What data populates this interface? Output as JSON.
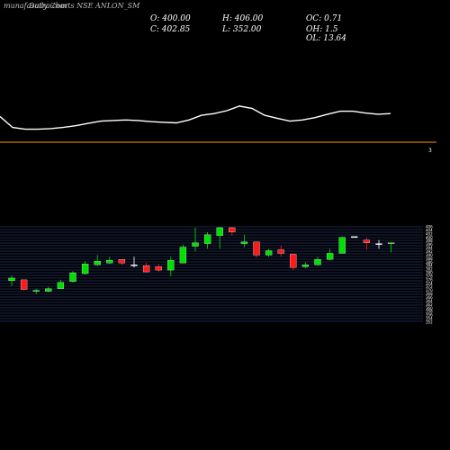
{
  "header": {
    "watermark": "munafasutra.com",
    "title": "Daily Charts NSE ANLON_SM",
    "open_label": "O: 400.00",
    "high_label": "H: 406.00",
    "close_label": "C: 402.85",
    "low_label": "L: 352.00",
    "oc_label": "OC: 0.71",
    "oh_label": "OH: 1.5",
    "ol_label": "OL: 13.64"
  },
  "colors": {
    "background": "#000000",
    "up_candle": "#00e000",
    "down_candle": "#ff1a1a",
    "neutral_candle": "#ffffff",
    "grid_line": "#3a4e9a",
    "panel_line": "#ffffff",
    "separator": "#ff9900"
  },
  "separator_marker": "3",
  "chart_data": {
    "type": "candlestick",
    "ylim": [
      352,
      406
    ],
    "series": [
      {
        "open": 375.5,
        "high": 378.5,
        "low": 372.5,
        "close": 377.0
      },
      {
        "open": 376.0,
        "high": 376.0,
        "low": 370.0,
        "close": 370.5
      },
      {
        "open": 369.5,
        "high": 371.0,
        "low": 368.0,
        "close": 370.0
      },
      {
        "open": 369.5,
        "high": 372.0,
        "low": 369.0,
        "close": 371.0
      },
      {
        "open": 371.0,
        "high": 376.0,
        "low": 371.0,
        "close": 374.5
      },
      {
        "open": 375.0,
        "high": 381.0,
        "low": 374.5,
        "close": 380.0
      },
      {
        "open": 379.5,
        "high": 386.5,
        "low": 379.0,
        "close": 385.0
      },
      {
        "open": 384.5,
        "high": 390.0,
        "low": 384.0,
        "close": 386.5
      },
      {
        "open": 385.5,
        "high": 389.0,
        "low": 385.0,
        "close": 387.0
      },
      {
        "open": 387.5,
        "high": 387.5,
        "low": 384.5,
        "close": 385.5
      },
      {
        "open": 384.5,
        "high": 389.0,
        "low": 383.0,
        "close": 384.5
      },
      {
        "open": 384.0,
        "high": 385.5,
        "low": 380.0,
        "close": 380.5
      },
      {
        "open": 383.5,
        "high": 385.0,
        "low": 380.5,
        "close": 381.5
      },
      {
        "open": 381.5,
        "high": 389.0,
        "low": 378.0,
        "close": 387.0
      },
      {
        "open": 385.5,
        "high": 396.0,
        "low": 385.5,
        "close": 394.5
      },
      {
        "open": 395.0,
        "high": 405.5,
        "low": 392.0,
        "close": 397.0
      },
      {
        "open": 396.5,
        "high": 403.0,
        "low": 393.5,
        "close": 401.5
      },
      {
        "open": 401.0,
        "high": 406.0,
        "low": 393.5,
        "close": 405.5
      },
      {
        "open": 405.5,
        "high": 406.0,
        "low": 401.0,
        "close": 403.0
      },
      {
        "open": 396.5,
        "high": 401.5,
        "low": 394.5,
        "close": 397.5
      },
      {
        "open": 397.5,
        "high": 397.5,
        "low": 388.5,
        "close": 390.0
      },
      {
        "open": 390.0,
        "high": 393.5,
        "low": 389.0,
        "close": 392.5
      },
      {
        "open": 393.0,
        "high": 395.5,
        "low": 389.0,
        "close": 391.0
      },
      {
        "open": 390.5,
        "high": 390.5,
        "low": 381.5,
        "close": 383.0
      },
      {
        "open": 383.5,
        "high": 386.0,
        "low": 382.5,
        "close": 384.5
      },
      {
        "open": 384.5,
        "high": 389.0,
        "low": 384.0,
        "close": 387.5
      },
      {
        "open": 387.5,
        "high": 393.5,
        "low": 387.0,
        "close": 391.0
      },
      {
        "open": 391.0,
        "high": 400.5,
        "low": 391.0,
        "close": 400.0
      },
      {
        "open": 400.5,
        "high": 400.5,
        "low": 400.5,
        "close": 400.5
      },
      {
        "open": 398.5,
        "high": 400.0,
        "low": 393.0,
        "close": 397.0
      },
      {
        "open": 396.5,
        "high": 398.5,
        "low": 393.5,
        "close": 396.5
      },
      {
        "open": 396.5,
        "high": 397.0,
        "low": 391.5,
        "close": 397.0
      }
    ],
    "indicator": [
      8.2,
      6.3,
      6.0,
      6.0,
      6.1,
      6.3,
      6.6,
      7.0,
      7.4,
      7.5,
      7.6,
      7.5,
      7.3,
      7.2,
      7.1,
      7.6,
      8.4,
      8.7,
      9.2,
      10.0,
      9.6,
      8.4,
      7.9,
      7.4,
      7.6,
      8.0,
      8.6,
      9.1,
      9.1,
      8.8,
      8.6,
      8.7
    ],
    "indicator_ylim": [
      5,
      12
    ]
  }
}
